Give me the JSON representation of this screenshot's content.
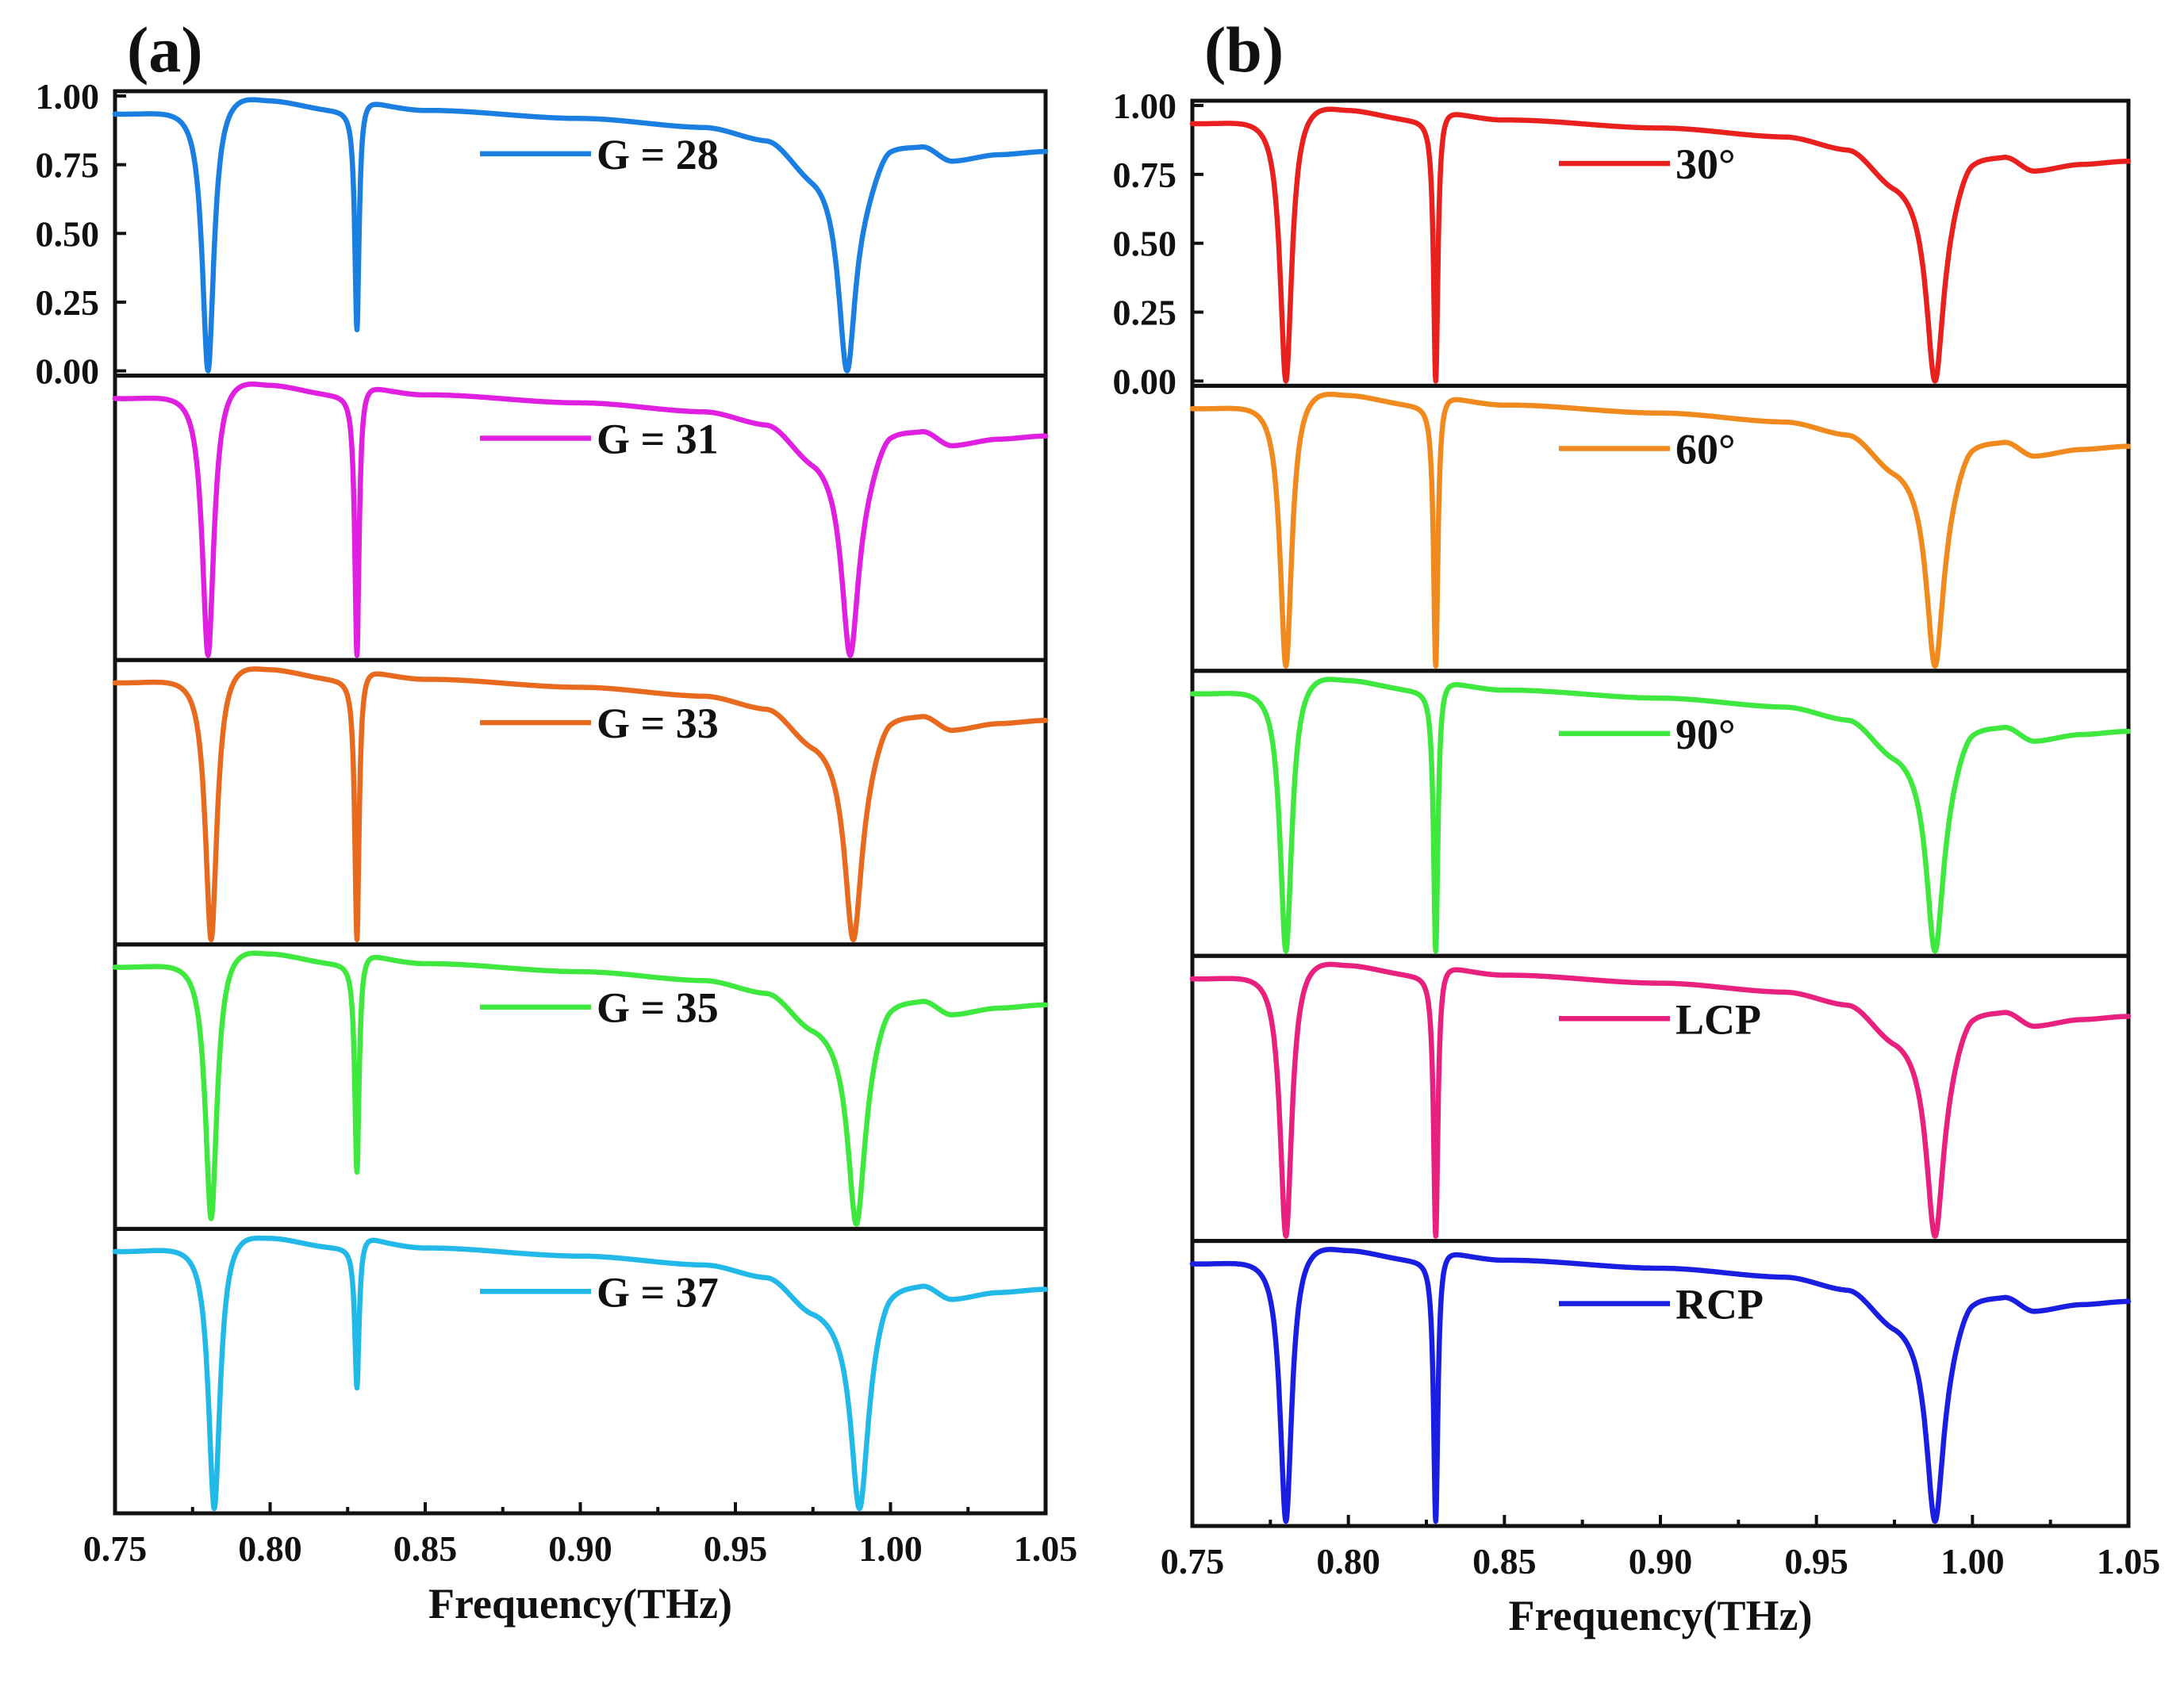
{
  "chart_data": [
    {
      "type": "line",
      "panel_label": "(a)",
      "xlabel": "Frequency(THz)",
      "ylabel": "",
      "xlim": [
        0.75,
        1.05
      ],
      "ylim": [
        0,
        1
      ],
      "x_ticks": [
        0.75,
        0.8,
        0.85,
        0.9,
        0.95,
        1.0,
        1.05
      ],
      "x_tick_labels": [
        "0.75",
        "0.80",
        "0.85",
        "0.90",
        "0.95",
        "1.00",
        "1.05"
      ],
      "y_ticks": [
        1.0,
        0.75,
        0.5,
        0.25,
        0.0
      ],
      "y_tick_labels": [
        "1.00",
        "0.75",
        "0.50",
        "0.25",
        "0.00"
      ],
      "layout": "stacked panels (top to bottom), y ticks shown on top panel only",
      "series": [
        {
          "name": "G = 28",
          "color": "#1a7fe0",
          "dips": [
            {
              "x": 0.78,
              "min": 0.0
            },
            {
              "x": 0.828,
              "min": 0.15
            },
            {
              "x": 0.986,
              "min": 0.0
            }
          ]
        },
        {
          "name": "G = 31",
          "color": "#e020e0",
          "dips": [
            {
              "x": 0.78,
              "min": 0.0
            },
            {
              "x": 0.828,
              "min": 0.0
            },
            {
              "x": 0.987,
              "min": 0.0
            }
          ]
        },
        {
          "name": "G = 33",
          "color": "#e86a1e",
          "dips": [
            {
              "x": 0.781,
              "min": 0.0
            },
            {
              "x": 0.828,
              "min": 0.0
            },
            {
              "x": 0.988,
              "min": 0.0
            }
          ]
        },
        {
          "name": "G = 35",
          "color": "#3ee83e",
          "dips": [
            {
              "x": 0.781,
              "min": 0.02
            },
            {
              "x": 0.828,
              "min": 0.19
            },
            {
              "x": 0.989,
              "min": 0.0
            }
          ]
        },
        {
          "name": "G = 37",
          "color": "#22b8e8",
          "dips": [
            {
              "x": 0.782,
              "min": 0.0
            },
            {
              "x": 0.828,
              "min": 0.44
            },
            {
              "x": 0.99,
              "min": 0.0
            }
          ]
        }
      ]
    },
    {
      "type": "line",
      "panel_label": "(b)",
      "xlabel": "Frequency(THz)",
      "ylabel": "",
      "xlim": [
        0.75,
        1.05
      ],
      "ylim": [
        0,
        1
      ],
      "x_ticks": [
        0.75,
        0.8,
        0.85,
        0.9,
        0.95,
        1.0,
        1.05
      ],
      "x_tick_labels": [
        "0.75",
        "0.80",
        "0.85",
        "0.90",
        "0.95",
        "1.00",
        "1.05"
      ],
      "y_ticks": [
        1.0,
        0.75,
        0.5,
        0.25,
        0.0
      ],
      "y_tick_labels": [
        "1.00",
        "0.75",
        "0.50",
        "0.25",
        "0.00"
      ],
      "layout": "stacked panels (top to bottom), y ticks shown on top panel only",
      "series": [
        {
          "name": "30°",
          "color": "#e8201e",
          "dips": [
            {
              "x": 0.78,
              "min": 0.0
            },
            {
              "x": 0.828,
              "min": 0.0
            },
            {
              "x": 0.988,
              "min": 0.0
            }
          ]
        },
        {
          "name": "60°",
          "color": "#f08a1e",
          "dips": [
            {
              "x": 0.78,
              "min": 0.0
            },
            {
              "x": 0.828,
              "min": 0.0
            },
            {
              "x": 0.988,
              "min": 0.0
            }
          ]
        },
        {
          "name": "90°",
          "color": "#3ee83e",
          "dips": [
            {
              "x": 0.78,
              "min": 0.0
            },
            {
              "x": 0.828,
              "min": 0.0
            },
            {
              "x": 0.988,
              "min": 0.0
            }
          ]
        },
        {
          "name": "LCP",
          "color": "#e8207e",
          "dips": [
            {
              "x": 0.78,
              "min": 0.0
            },
            {
              "x": 0.828,
              "min": 0.0
            },
            {
              "x": 0.988,
              "min": 0.0
            }
          ]
        },
        {
          "name": "RCP",
          "color": "#1a1ee0",
          "dips": [
            {
              "x": 0.78,
              "min": 0.0
            },
            {
              "x": 0.828,
              "min": 0.0
            },
            {
              "x": 0.988,
              "min": 0.0
            }
          ]
        }
      ]
    }
  ]
}
